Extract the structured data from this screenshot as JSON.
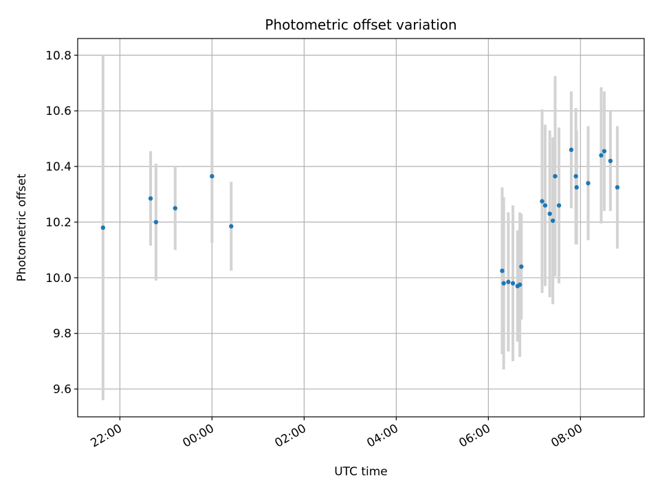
{
  "chart_data": {
    "type": "scatter",
    "title": "Photometric offset variation",
    "xlabel": "UTC time",
    "ylabel": "Photometric offset",
    "x_axis": {
      "type": "time",
      "ticks": [
        "22:00",
        "00:00",
        "02:00",
        "04:00",
        "06:00",
        "08:00"
      ],
      "xlim": [
        "21:05",
        "09:23"
      ]
    },
    "y_axis": {
      "ticks": [
        "9.6",
        "9.8",
        "10.0",
        "10.2",
        "10.4",
        "10.6",
        "10.8"
      ],
      "ylim": [
        9.5,
        10.86
      ]
    },
    "grid": true,
    "marker_color": "#1f77b4",
    "errorbar_color": "#d3d3d3",
    "series": [
      {
        "points": [
          {
            "x": "21:38",
            "y": 10.18,
            "yerr": 0.62
          },
          {
            "x": "22:40",
            "y": 10.285,
            "yerr": 0.17
          },
          {
            "x": "22:47",
            "y": 10.2,
            "yerr": 0.21
          },
          {
            "x": "23:12",
            "y": 10.25,
            "yerr": 0.15
          },
          {
            "x": "00:00",
            "y": 10.365,
            "yerr": 0.24
          },
          {
            "x": "00:25",
            "y": 10.185,
            "yerr": 0.16
          },
          {
            "x": "06:18",
            "y": 10.025,
            "yerr": 0.3
          },
          {
            "x": "06:20",
            "y": 9.98,
            "yerr": 0.31
          },
          {
            "x": "06:26",
            "y": 9.985,
            "yerr": 0.25
          },
          {
            "x": "06:32",
            "y": 9.98,
            "yerr": 0.28
          },
          {
            "x": "06:38",
            "y": 9.97,
            "yerr": 0.2
          },
          {
            "x": "06:41",
            "y": 9.975,
            "yerr": 0.26
          },
          {
            "x": "06:43",
            "y": 10.04,
            "yerr": 0.19
          },
          {
            "x": "07:10",
            "y": 10.275,
            "yerr": 0.33
          },
          {
            "x": "07:14",
            "y": 10.26,
            "yerr": 0.29
          },
          {
            "x": "07:20",
            "y": 10.23,
            "yerr": 0.3
          },
          {
            "x": "07:24",
            "y": 10.205,
            "yerr": 0.3
          },
          {
            "x": "07:27",
            "y": 10.365,
            "yerr": 0.36
          },
          {
            "x": "07:32",
            "y": 10.26,
            "yerr": 0.28
          },
          {
            "x": "07:48",
            "y": 10.46,
            "yerr": 0.21
          },
          {
            "x": "07:54",
            "y": 10.365,
            "yerr": 0.245
          },
          {
            "x": "07:55",
            "y": 10.325,
            "yerr": 0.205
          },
          {
            "x": "08:10",
            "y": 10.34,
            "yerr": 0.205
          },
          {
            "x": "08:27",
            "y": 10.44,
            "yerr": 0.245
          },
          {
            "x": "08:31",
            "y": 10.455,
            "yerr": 0.215
          },
          {
            "x": "08:39",
            "y": 10.42,
            "yerr": 0.18
          },
          {
            "x": "08:48",
            "y": 10.325,
            "yerr": 0.22
          }
        ]
      }
    ]
  }
}
